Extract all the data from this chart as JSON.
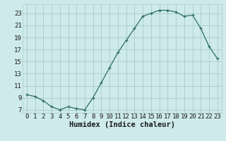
{
  "x": [
    0,
    1,
    2,
    3,
    4,
    5,
    6,
    7,
    8,
    9,
    10,
    11,
    12,
    13,
    14,
    15,
    16,
    17,
    18,
    19,
    20,
    21,
    22,
    23
  ],
  "y": [
    9.5,
    9.2,
    8.5,
    7.5,
    7.0,
    7.5,
    7.2,
    7.0,
    9.0,
    11.5,
    14.0,
    16.5,
    18.5,
    20.5,
    22.5,
    23.0,
    23.5,
    23.5,
    23.2,
    22.5,
    22.7,
    20.5,
    17.5,
    15.5
  ],
  "xlabel": "Humidex (Indice chaleur)",
  "ylim": [
    6.5,
    24.5
  ],
  "xlim": [
    -0.5,
    23.5
  ],
  "yticks": [
    7,
    9,
    11,
    13,
    15,
    17,
    19,
    21,
    23
  ],
  "xticks": [
    0,
    1,
    2,
    3,
    4,
    5,
    6,
    7,
    8,
    9,
    10,
    11,
    12,
    13,
    14,
    15,
    16,
    17,
    18,
    19,
    20,
    21,
    22,
    23
  ],
  "line_color": "#2d6e5e",
  "marker_color": "#2d6e5e",
  "bg_color": "#ceeaea",
  "grid_color": "#aacccc",
  "font_color": "#1a1a1a",
  "tick_fontsize": 6.5,
  "xlabel_fontsize": 7.5
}
